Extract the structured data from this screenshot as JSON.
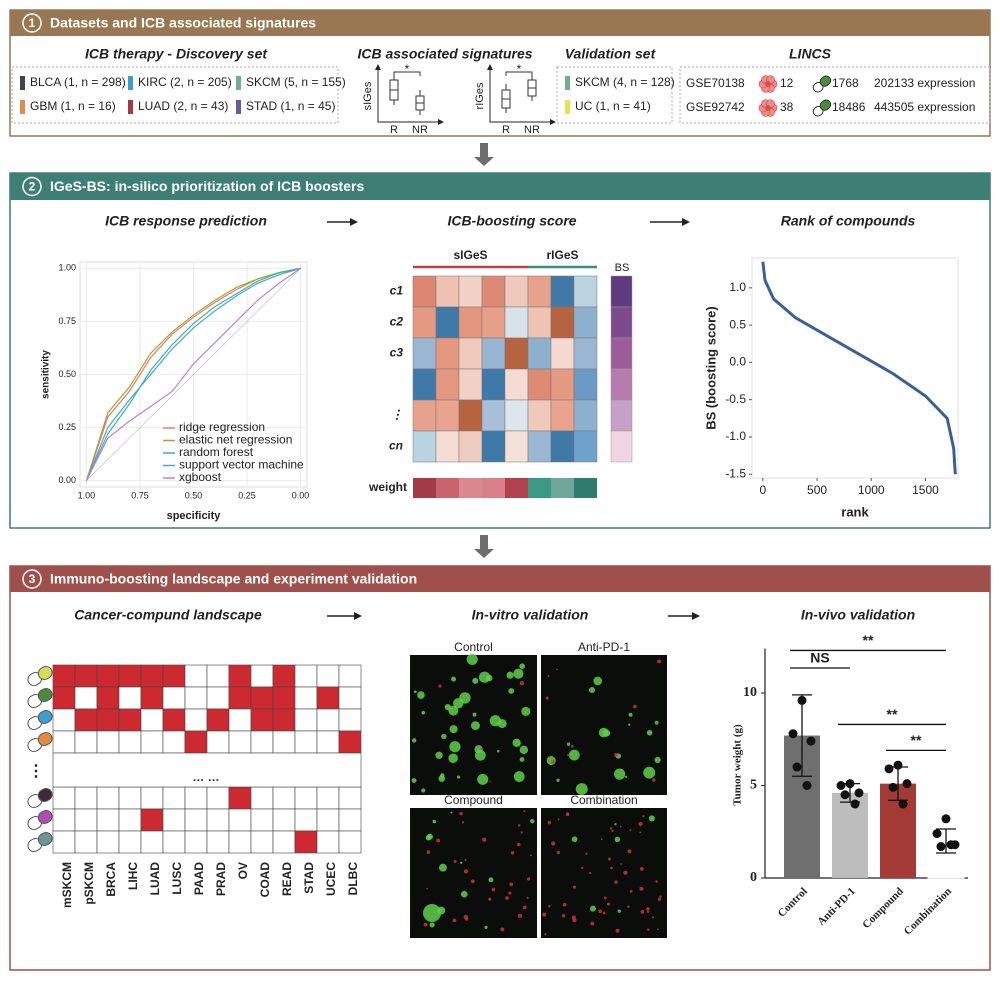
{
  "section1": {
    "number": "1",
    "title": "Datasets and ICB associated signatures",
    "color": "#9a7753",
    "discovery": {
      "title": "ICB therapy - Discovery set",
      "items": [
        {
          "label": "BLCA (1, n = 298)",
          "color": "#3d4250"
        },
        {
          "label": "KIRC (2, n = 205)",
          "color": "#3b9fc8"
        },
        {
          "label": "SKCM (5, n = 155)",
          "color": "#72ad92"
        },
        {
          "label": "GBM (1, n = 16)",
          "color": "#df8a4e"
        },
        {
          "label": "LUAD (2, n = 43)",
          "color": "#a03b41"
        },
        {
          "label": "STAD (1, n = 45)",
          "color": "#6b5a95"
        }
      ]
    },
    "signatures": {
      "title": "ICB associated signatures",
      "plots": [
        {
          "ylabel": "sIGes",
          "groups": [
            "R",
            "NR"
          ],
          "significance": "*"
        },
        {
          "ylabel": "rIGes",
          "groups": [
            "R",
            "NR"
          ],
          "significance": "*"
        }
      ]
    },
    "validation": {
      "title": "Validation set",
      "items": [
        {
          "label": "SKCM (4, n = 128)",
          "color": "#72ad92"
        },
        {
          "label": "UC (1, n = 41)",
          "color": "#e8e04c"
        }
      ]
    },
    "lincs": {
      "title": "LINCS",
      "rows": [
        {
          "dataset": "GSE70138",
          "cell_lines": "12",
          "compounds": "1768",
          "profiles": "202133 expression"
        },
        {
          "dataset": "GSE92742",
          "cell_lines": "38",
          "compounds": "18486",
          "profiles": "443505 expression"
        }
      ]
    }
  },
  "section2": {
    "number": "2",
    "title": "IGeS-BS: in-silico prioritization of ICB boosters",
    "color": "#3d7f74",
    "roc": {
      "title": "ICB response prediction",
      "chart_data": {
        "type": "line",
        "xlabel": "specificity",
        "ylabel": "sensitivity",
        "x": [
          1,
          0.9,
          0.8,
          0.7,
          0.6,
          0.5,
          0.4,
          0.3,
          0.2,
          0.1,
          0
        ],
        "series": [
          {
            "name": "ridge regression",
            "color": "#e8776d",
            "values": [
              0,
              0.3,
              0.42,
              0.58,
              0.69,
              0.77,
              0.84,
              0.9,
              0.95,
              0.98,
              1
            ]
          },
          {
            "name": "elastic net regression",
            "color": "#a3a52c",
            "values": [
              0,
              0.32,
              0.44,
              0.6,
              0.7,
              0.78,
              0.85,
              0.91,
              0.95,
              0.98,
              1
            ]
          },
          {
            "name": "random forest",
            "color": "#3cb39c",
            "values": [
              0,
              0.22,
              0.36,
              0.52,
              0.64,
              0.74,
              0.82,
              0.88,
              0.94,
              0.98,
              1
            ]
          },
          {
            "name": "support vector machine",
            "color": "#4aa3d8",
            "values": [
              0,
              0.25,
              0.38,
              0.5,
              0.62,
              0.72,
              0.8,
              0.87,
              0.93,
              0.97,
              1
            ]
          },
          {
            "name": "xgboost",
            "color": "#c47fd6",
            "values": [
              0,
              0.2,
              0.28,
              0.35,
              0.42,
              0.55,
              0.65,
              0.75,
              0.85,
              0.93,
              1
            ]
          }
        ],
        "xlim": [
          1.03,
          -0.03
        ],
        "ylim": [
          -0.03,
          1.03
        ],
        "xticks": [
          {
            "value": 1,
            "label": "1.00"
          },
          0.75,
          {
            "value": 0.5,
            "label": "0.50"
          },
          0.25,
          {
            "value": 0,
            "label": "0.00"
          }
        ],
        "yticks": [
          {
            "value": 0,
            "label": "0.00"
          },
          0.25,
          {
            "value": 0.5,
            "label": "0.50"
          },
          0.75,
          {
            "value": 1,
            "label": "1.00"
          }
        ],
        "grid": true
      }
    },
    "heatmap": {
      "title": "ICB-boosting score",
      "groups": [
        {
          "name": "sIGeS",
          "color": "#b5434b"
        },
        {
          "name": "rIGeS",
          "color": "#3f8c79"
        }
      ],
      "bs_label": "BS",
      "rows": [
        "c1",
        "c2",
        "c3",
        null,
        "⋮",
        "cn"
      ],
      "cells": [
        [
          "#dd8670",
          "#efc1b0",
          "#f2d2c6",
          "#dc8a74",
          "#f0c9bb",
          "#e6a28c",
          "#3f79a8",
          "#bcd4df"
        ],
        [
          "#e59a83",
          "#3f79a8",
          "#e3967f",
          "#e69f89",
          "#d8e2ea",
          "#efc3b2",
          "#b5643f",
          "#8eb0cf"
        ],
        [
          "#9bb6d2",
          "#e4987f",
          "#f0cabb",
          "#9ab5d1",
          "#b5643f",
          "#8eb0cf",
          "#f4d9cf",
          "#9bb6d2"
        ],
        [
          "#3f79a8",
          "#e4987f",
          "#f1d1c5",
          "#3f79a8",
          "#f4dcd2",
          "#de8b75",
          "#e59a83",
          "#6d9ac4"
        ],
        [
          "#e6a28c",
          "#e7a38d",
          "#b5643f",
          "#a8bfd8",
          "#dde6ee",
          "#f0c9bb",
          "#e7a38d",
          "#8eb0cf"
        ],
        [
          "#b9d3e3",
          "#f5ddd4",
          "#f0cdc1",
          "#3f79a8",
          "#f6e1d9",
          "#9bb6d2",
          "#3f79a8",
          "#6ea2cc"
        ]
      ],
      "bs_colors": [
        "#5e3a7e",
        "#7d4b8c",
        "#9a5d9a",
        "#b67cae",
        "#c7a0c7",
        "#efd4e2"
      ],
      "weight_label": "weight",
      "weight_colors": [
        "#a33b44",
        "#c9646c",
        "#d98890",
        "#d88089",
        "#b0434e",
        "#3c9887",
        "#6fa79b",
        "#2f7b6d"
      ]
    },
    "rank": {
      "title": "Rank of compounds",
      "chart_data": {
        "type": "line",
        "xlabel": "rank",
        "ylabel": "BS (boosting score)",
        "color": "#3c5f98",
        "x": [
          0,
          20,
          100,
          300,
          600,
          900,
          1200,
          1500,
          1700,
          1760,
          1775
        ],
        "values": [
          1.35,
          1.1,
          0.85,
          0.6,
          0.35,
          0.1,
          -0.15,
          -0.45,
          -0.75,
          -1.15,
          -1.5
        ],
        "xlim": [
          -100,
          1800
        ],
        "ylim": [
          -1.55,
          1.4
        ],
        "xticks": [
          0,
          500,
          1000,
          1500
        ],
        "yticks": [
          -1.5,
          {
            "value": -1,
            "label": "-1.0"
          },
          -0.5,
          {
            "value": 0,
            "label": "0.0"
          },
          0.5,
          {
            "value": 1,
            "label": "1.0"
          }
        ]
      }
    }
  },
  "section3": {
    "number": "3",
    "title": "Immuno-boosting landscape and experiment validation",
    "color": "#a0504c",
    "landscape": {
      "title": "Cancer-compund landscape",
      "color": "#cc2a30",
      "separator": "… …",
      "ellipsis": "⋮",
      "cancers": [
        "mSKCM",
        "pSKCM",
        "BRCA",
        "LIHC",
        "LUAD",
        "LUSC",
        "PAAD",
        "PRAD",
        "OV",
        "COAD",
        "READ",
        "STAD",
        "UCEC",
        "DLBC"
      ],
      "pill_colors": [
        "#d6dc5a",
        "#4c8a3c",
        "#3aa0d0",
        "#e48a3f",
        "#3c2a3a",
        "#b04db0",
        "#6d9593"
      ],
      "matrix": [
        [
          1,
          1,
          1,
          1,
          1,
          1,
          0,
          0,
          1,
          0,
          1,
          0,
          0,
          0
        ],
        [
          1,
          0,
          1,
          0,
          1,
          0,
          0,
          0,
          1,
          1,
          1,
          0,
          1,
          0
        ],
        [
          0,
          1,
          1,
          1,
          0,
          1,
          0,
          1,
          0,
          1,
          1,
          0,
          0,
          0
        ],
        [
          0,
          0,
          0,
          0,
          0,
          0,
          1,
          0,
          0,
          0,
          0,
          0,
          0,
          1
        ],
        [
          0,
          0,
          0,
          0,
          0,
          0,
          0,
          0,
          1,
          0,
          0,
          0,
          0,
          0
        ],
        [
          0,
          0,
          0,
          0,
          1,
          0,
          0,
          0,
          0,
          0,
          0,
          0,
          0,
          0
        ],
        [
          0,
          0,
          0,
          0,
          0,
          0,
          0,
          0,
          0,
          0,
          0,
          1,
          0,
          0
        ]
      ]
    },
    "invitro": {
      "title": "In-vitro validation",
      "panels": [
        "Control",
        "Anti-PD-1",
        "Compound",
        "Combination"
      ]
    },
    "invivo": {
      "title": "In-vivo validation",
      "chart_data": {
        "type": "bar",
        "ylabel": "Tumor weight (g)",
        "categories": [
          "Control",
          "Anti-PD-1",
          "Compound",
          "Combination"
        ],
        "values": [
          7.7,
          4.6,
          5.1,
          2.0
        ],
        "errors": [
          2.2,
          0.5,
          0.9,
          0.65
        ],
        "colors": [
          "#6f6f6f",
          "#bdbdbd",
          "#a33a36",
          "#ffffff"
        ],
        "points": [
          [
            9.6,
            7.8,
            7.4,
            6.0,
            5.0
          ],
          [
            5.1,
            5.0,
            4.6,
            4.5,
            4.0
          ],
          [
            6.1,
            5.9,
            5.1,
            4.9,
            4.0
          ],
          [
            3.2,
            2.4,
            1.8,
            1.7,
            1.8
          ]
        ],
        "ylim": [
          0,
          12.4
        ],
        "yticks": [
          0,
          5,
          10
        ],
        "annotations": [
          {
            "label": "NS",
            "y": 11.35,
            "span": [
              0,
              1
            ]
          },
          {
            "label": "**",
            "y": 12.3,
            "span": [
              0,
              3
            ]
          },
          {
            "label": "**",
            "y": 8.3,
            "span": [
              1,
              3
            ]
          },
          {
            "label": "**",
            "y": 6.9,
            "span": [
              2,
              3
            ]
          }
        ]
      }
    }
  }
}
